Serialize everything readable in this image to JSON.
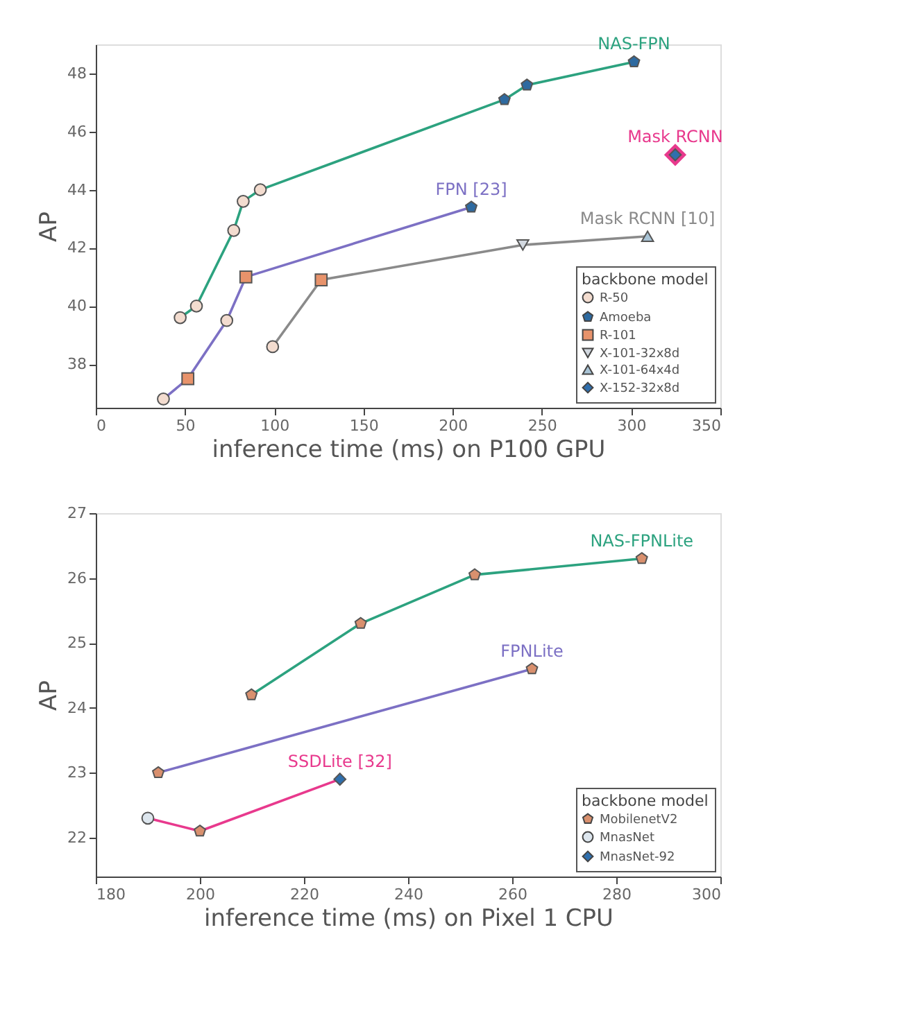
{
  "chart_data": [
    {
      "type": "line",
      "xlabel": "inference time (ms) on P100 GPU",
      "ylabel": "AP",
      "legend_title": "backbone model",
      "legend": "bottom right",
      "grid": false,
      "xlim": [
        0,
        350
      ],
      "xticks": [
        0,
        50,
        100,
        150,
        200,
        250,
        300,
        350
      ],
      "ylim": [
        36.5,
        49
      ],
      "yticks": [
        38,
        40,
        42,
        44,
        46,
        48
      ],
      "series": [
        {
          "name": "NAS-FPN",
          "type": "line",
          "marker": "none",
          "color": "#2ca27f",
          "x": [
            47.3,
            56.4,
            77.3,
            82.6,
            92.2,
            229,
            241.6,
            301.6
          ],
          "values": [
            39.6,
            40.0,
            42.6,
            43.6,
            44.0,
            47.1,
            47.6,
            48.4
          ]
        },
        {
          "name": "FPN [23]",
          "type": "line",
          "marker": "none",
          "color": "#7c70c4",
          "x": [
            37.9,
            51.6,
            73.4,
            84.1,
            210.4
          ],
          "values": [
            36.8,
            37.5,
            39.5,
            41.0,
            43.4
          ]
        },
        {
          "name": "Mask RCNN [10]",
          "type": "line",
          "marker": "none",
          "color": "#8a8a8a",
          "x": [
            99.1,
            126.3,
            239.3,
            309.2
          ],
          "values": [
            38.6,
            40.9,
            42.1,
            42.4
          ]
        },
        {
          "name": "Mask RCNN",
          "type": "line",
          "marker": "diamond",
          "color": "#e8398d",
          "x": [
            324.7
          ],
          "values": [
            45.2
          ]
        },
        {
          "name": "R-50",
          "type": "scatter",
          "marker": "circle",
          "color": "#f3dccf",
          "x": [
            47.3,
            56.4,
            77.3,
            82.6,
            92.2,
            37.9,
            73.4,
            99.1
          ],
          "values": [
            39.6,
            40.0,
            42.6,
            43.6,
            44.0,
            36.8,
            39.5,
            38.6
          ]
        },
        {
          "name": "Amoeba",
          "type": "scatter",
          "color": "#2e6aa0",
          "x": [
            229,
            241.6,
            301.6,
            210.4
          ],
          "values": [
            47.1,
            47.6,
            48.4,
            43.4
          ]
        },
        {
          "name": "R-101",
          "type": "scatter",
          "marker": "square",
          "color": "#e8936b",
          "x": [
            51.6,
            84.1,
            126.3
          ],
          "values": [
            37.5,
            41.0,
            40.9
          ]
        },
        {
          "name": "X-101-32x8d",
          "type": "scatter",
          "marker": "triangle-down",
          "color": "#d3d9e0",
          "x": [
            239.3
          ],
          "values": [
            42.1
          ]
        },
        {
          "name": "X-101-64x4d",
          "type": "scatter",
          "marker": "triangle",
          "color": "#a9c4d6",
          "x": [
            309.2
          ],
          "values": [
            42.4
          ]
        },
        {
          "name": "X-152-32x8d",
          "type": "scatter",
          "marker": "diamond",
          "color": "#2f6fad",
          "x": [
            324.7
          ],
          "values": [
            45.2
          ]
        }
      ]
    },
    {
      "type": "line",
      "xlabel": "inference time (ms) on Pixel 1 CPU",
      "ylabel": "AP",
      "legend_title": "backbone model",
      "legend": "bottom right",
      "grid": false,
      "xlim": [
        180,
        300
      ],
      "xticks": [
        180,
        200,
        220,
        240,
        260,
        280,
        300
      ],
      "ylim": [
        21.4,
        27
      ],
      "yticks": [
        22,
        23,
        24,
        25,
        26,
        27
      ],
      "series": [
        {
          "name": "NAS-FPNLite",
          "type": "line",
          "marker": "none",
          "color": "#2ca27f",
          "x": [
            209.9,
            230.9,
            252.8,
            284.9
          ],
          "values": [
            24.2,
            25.3,
            26.05,
            26.3
          ]
        },
        {
          "name": "FPNLite",
          "type": "line",
          "marker": "none",
          "color": "#7c70c4",
          "x": [
            192.0,
            263.8
          ],
          "values": [
            23.0,
            24.6
          ]
        },
        {
          "name": "SSDLite [32]",
          "type": "line",
          "marker": "none",
          "color": "#e8398d",
          "x": [
            190.0,
            200.0,
            226.9
          ],
          "values": [
            22.3,
            22.1,
            22.9
          ]
        },
        {
          "name": "MobilenetV2",
          "type": "scatter",
          "color": "#d9906e",
          "x": [
            209.9,
            230.9,
            252.8,
            284.9,
            192.0,
            263.8,
            200.0
          ],
          "values": [
            24.2,
            25.3,
            26.05,
            26.3,
            23.0,
            24.6,
            22.1
          ]
        },
        {
          "name": "MnasNet",
          "type": "scatter",
          "marker": "circle",
          "color": "#dde6ee",
          "x": [
            190.0
          ],
          "values": [
            22.3
          ]
        },
        {
          "name": "MnasNet-92",
          "type": "scatter",
          "marker": "diamond",
          "color": "#2f6fad",
          "x": [
            226.9
          ],
          "values": [
            22.9
          ]
        }
      ]
    }
  ]
}
